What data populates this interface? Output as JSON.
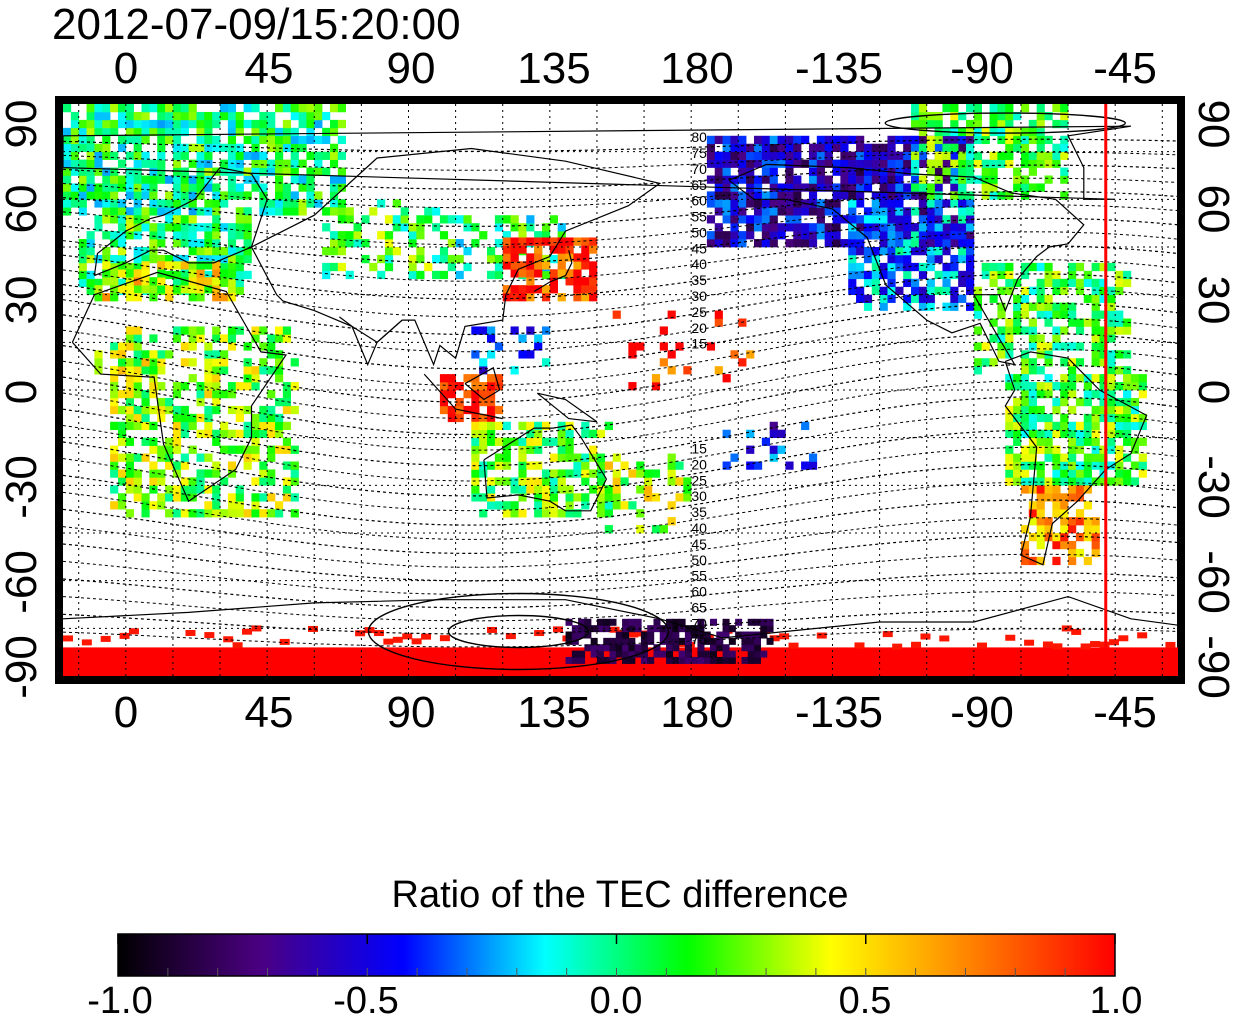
{
  "timestamp": "2012-07-09/15:20:00",
  "longitude_ticks": [
    "0",
    "45",
    "90",
    "135",
    "180",
    "-135",
    "-90",
    "-45"
  ],
  "latitude_ticks_left": [
    "90",
    "60",
    "30",
    "0",
    "-30",
    "-60",
    "-90"
  ],
  "latitude_ticks_right": [
    "90",
    "60",
    "30",
    "0",
    "-30",
    "-60",
    "-90"
  ],
  "contour_labels_north": [
    "80",
    "75",
    "70",
    "65",
    "60",
    "55",
    "50",
    "45",
    "40",
    "35",
    "30",
    "25",
    "20",
    "15"
  ],
  "contour_labels_south": [
    "15",
    "20",
    "25",
    "30",
    "35",
    "40",
    "45",
    "50",
    "55",
    "60",
    "65",
    "70",
    "75"
  ],
  "colorbar": {
    "title": "Ratio of the TEC difference",
    "ticks": [
      "-1.0",
      "-0.5",
      "0.0",
      "0.5",
      "1.0"
    ],
    "range": [
      -1.0,
      1.0
    ],
    "colors": [
      "#000000",
      "#4b0082",
      "#0000ff",
      "#00ffff",
      "#00ff00",
      "#ffff00",
      "#ff8000",
      "#ff0000"
    ]
  },
  "map": {
    "projection": "equirectangular",
    "center_longitude": 157.5,
    "lon_range": [
      -20,
      335
    ],
    "lat_range": [
      -90,
      90
    ],
    "grid": true,
    "terminator_longitude": -48,
    "terminator_color": "#ff0000"
  }
}
